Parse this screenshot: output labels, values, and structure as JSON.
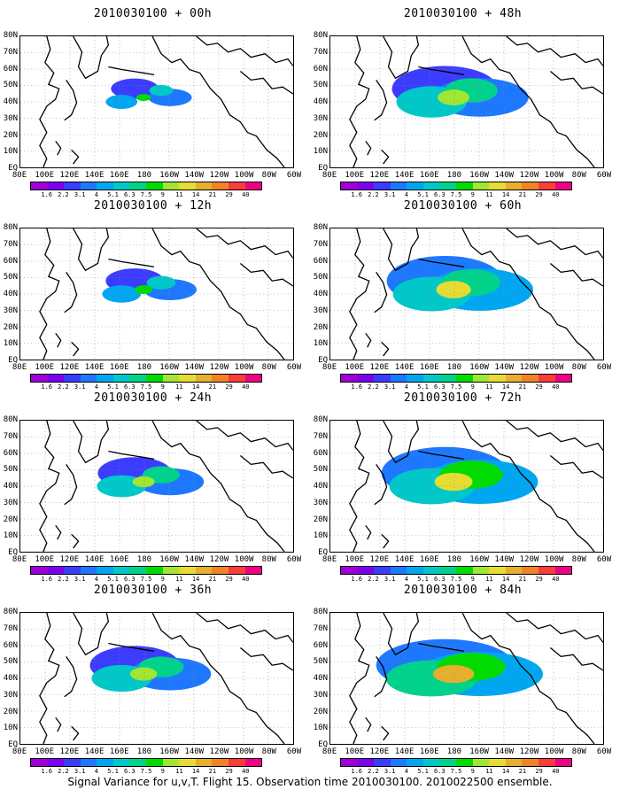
{
  "panels": [
    {
      "title": "2010030100 + 00h",
      "spread": 0.45,
      "intensity": 0.35
    },
    {
      "title": "2010030100 + 48h",
      "spread": 1.0,
      "intensity": 0.55
    },
    {
      "title": "2010030100 + 12h",
      "spread": 0.55,
      "intensity": 0.45
    },
    {
      "title": "2010030100 + 60h",
      "spread": 1.1,
      "intensity": 0.65
    },
    {
      "title": "2010030100 + 24h",
      "spread": 0.7,
      "intensity": 0.55
    },
    {
      "title": "2010030100 + 72h",
      "spread": 1.2,
      "intensity": 0.75
    },
    {
      "title": "2010030100 + 36h",
      "spread": 0.85,
      "intensity": 0.55
    },
    {
      "title": "2010030100 + 84h",
      "spread": 1.3,
      "intensity": 0.85
    }
  ],
  "y_labels": [
    "80N",
    "70N",
    "60N",
    "50N",
    "40N",
    "30N",
    "20N",
    "10N",
    "EQ"
  ],
  "x_labels": [
    "80E",
    "100E",
    "120E",
    "140E",
    "160E",
    "180",
    "160W",
    "140W",
    "120W",
    "100W",
    "80W",
    "60W"
  ],
  "colorbar": {
    "labels": [
      "1.6",
      "2.2",
      "3.1",
      "4",
      "5.1",
      "6.3",
      "7.5",
      "9",
      "11",
      "14",
      "21",
      "29",
      "40"
    ],
    "colors": [
      "#9f00d9",
      "#7d00f0",
      "#3c3cff",
      "#1e78ff",
      "#00a6f0",
      "#00c8c8",
      "#00d28c",
      "#00dc00",
      "#a0e632",
      "#e6dc32",
      "#e6af2d",
      "#f08228",
      "#fa3c3c",
      "#f00082"
    ]
  },
  "footer": "Signal Variance for u,v,T. Flight 15. Observation time 2010030100. 2010022500 ensemble."
}
